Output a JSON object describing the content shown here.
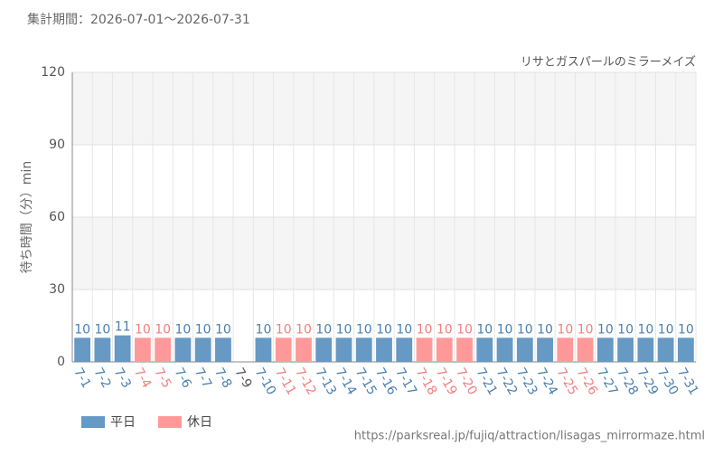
{
  "header": "集計期間：2026-07-01～2026-07-31",
  "source": "https://parksreal.jp/fujiq/attraction/lisagas_mirrormaze.html",
  "chart_data": {
    "type": "bar",
    "title": "リサとガスパールのミラーメイズ",
    "y_label": "待ち時間（分）min",
    "categories": [
      "7-1",
      "7-2",
      "7-3",
      "7-4",
      "7-5",
      "7-6",
      "7-7",
      "7-8",
      "7-9",
      "7-10",
      "7-11",
      "7-12",
      "7-13",
      "7-14",
      "7-15",
      "7-16",
      "7-17",
      "7-18",
      "7-19",
      "7-20",
      "7-21",
      "7-22",
      "7-23",
      "7-24",
      "7-25",
      "7-26",
      "7-27",
      "7-28",
      "7-29",
      "7-30",
      "7-31"
    ],
    "series": [
      {
        "name": "平日",
        "color": "#6699c4",
        "label_color": "#4a7fb0",
        "values": [
          10,
          10,
          11,
          null,
          null,
          10,
          10,
          10,
          null,
          10,
          null,
          null,
          10,
          10,
          10,
          10,
          10,
          null,
          null,
          null,
          10,
          10,
          10,
          10,
          null,
          null,
          10,
          10,
          10,
          10,
          10
        ]
      },
      {
        "name": "休日",
        "color": "#ff9999",
        "label_color": "#f08080",
        "values": [
          null,
          null,
          null,
          10,
          10,
          null,
          null,
          null,
          null,
          null,
          10,
          10,
          null,
          null,
          null,
          null,
          null,
          10,
          10,
          10,
          null,
          null,
          null,
          null,
          10,
          10,
          null,
          null,
          null,
          null,
          null
        ]
      }
    ],
    "ylim": [
      0,
      120
    ],
    "yticks": [
      0,
      30,
      60,
      90,
      120
    ],
    "grid": true
  }
}
